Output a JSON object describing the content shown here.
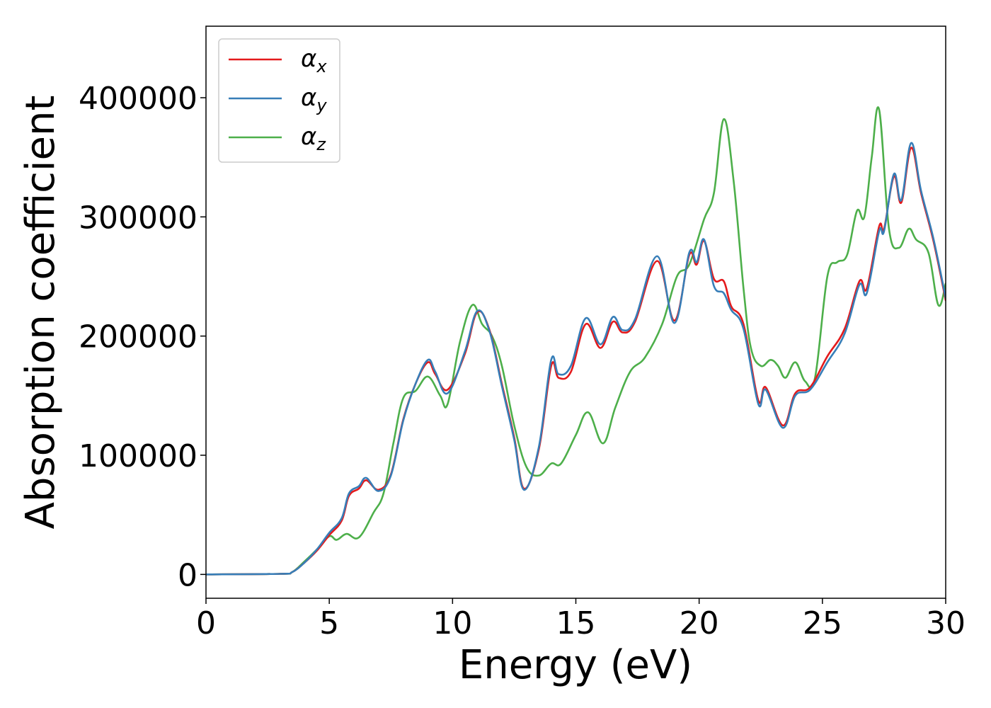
{
  "chart_data": {
    "type": "line",
    "title": "",
    "xlabel": "Energy (eV)",
    "ylabel": "Absorption coefficient",
    "xlim": [
      0,
      30
    ],
    "ylim": [
      -20000,
      460000
    ],
    "xticks": [
      0,
      5,
      10,
      15,
      20,
      25,
      30
    ],
    "yticks": [
      0,
      100000,
      200000,
      300000,
      400000
    ],
    "grid": false,
    "legend_position": "top-left",
    "series": [
      {
        "name": "αx",
        "symbol": "α",
        "subscript": "x",
        "color": "#e41a1c",
        "x": [
          0,
          3,
          3.5,
          4,
          4.5,
          5,
          5.5,
          5.8,
          6.2,
          6.5,
          7,
          7.5,
          8,
          8.5,
          9,
          9.3,
          9.8,
          10.5,
          11,
          11.5,
          12,
          12.5,
          12.9,
          13.5,
          14,
          14.3,
          14.8,
          15.4,
          16,
          16.5,
          16.9,
          17.4,
          18.3,
          19,
          19.6,
          19.9,
          20.2,
          20.6,
          21,
          21.3,
          21.8,
          22.4,
          22.7,
          23.4,
          23.9,
          24.5,
          25.2,
          25.9,
          26.5,
          26.8,
          27.3,
          27.5,
          27.9,
          28.2,
          28.6,
          29,
          29.5,
          30
        ],
        "y": [
          0,
          500,
          2000,
          10000,
          20000,
          33000,
          45000,
          66000,
          72000,
          79000,
          71000,
          84000,
          130000,
          160000,
          178000,
          168000,
          155000,
          185000,
          220000,
          205000,
          160000,
          115000,
          72000,
          105000,
          175000,
          165000,
          170000,
          210000,
          190000,
          212000,
          203000,
          212000,
          263000,
          213000,
          268000,
          260000,
          280000,
          248000,
          246000,
          225000,
          210000,
          146000,
          157000,
          125000,
          152000,
          157000,
          183000,
          206000,
          246000,
          240000,
          292000,
          290000,
          334000,
          312000,
          358000,
          320000,
          280000,
          230000
        ]
      },
      {
        "name": "αy",
        "symbol": "α",
        "subscript": "y",
        "color": "#377eb8",
        "x": [
          0,
          3,
          3.5,
          4,
          4.5,
          5,
          5.5,
          5.8,
          6.2,
          6.5,
          7,
          7.5,
          8,
          8.5,
          9,
          9.3,
          9.8,
          10.5,
          11,
          11.5,
          12,
          12.5,
          12.9,
          13.5,
          14,
          14.3,
          14.8,
          15.4,
          16,
          16.5,
          16.9,
          17.4,
          18.3,
          19,
          19.6,
          19.9,
          20.2,
          20.6,
          21,
          21.3,
          21.8,
          22.4,
          22.7,
          23.4,
          23.9,
          24.5,
          25.2,
          25.9,
          26.5,
          26.8,
          27.3,
          27.5,
          27.9,
          28.2,
          28.6,
          29,
          29.5,
          30
        ],
        "y": [
          0,
          500,
          2000,
          10000,
          21000,
          35000,
          47000,
          68000,
          74000,
          81000,
          70000,
          83000,
          129000,
          160000,
          180000,
          170000,
          152000,
          187000,
          221000,
          204000,
          158000,
          113000,
          71000,
          107000,
          180000,
          168000,
          175000,
          215000,
          193000,
          216000,
          205000,
          214000,
          267000,
          211000,
          270000,
          262000,
          281000,
          242000,
          236000,
          222000,
          206000,
          143000,
          155000,
          123000,
          150000,
          155000,
          178000,
          202000,
          243000,
          236000,
          288000,
          288000,
          336000,
          314000,
          362000,
          322000,
          282000,
          232000
        ]
      },
      {
        "name": "αz",
        "symbol": "α",
        "subscript": "z",
        "color": "#4daf4a",
        "x": [
          0,
          3,
          3.5,
          4,
          4.5,
          5,
          5.3,
          5.7,
          6.2,
          6.8,
          7.2,
          7.6,
          8,
          8.5,
          9,
          9.5,
          9.8,
          10.3,
          10.8,
          11.2,
          11.6,
          12,
          12.5,
          13,
          13.5,
          14,
          14.4,
          15,
          15.5,
          16.1,
          16.6,
          17.2,
          17.8,
          18.5,
          19.1,
          19.6,
          20.2,
          20.6,
          21,
          21.4,
          21.8,
          22.1,
          22.5,
          22.9,
          23.2,
          23.5,
          23.9,
          24.3,
          24.7,
          25.2,
          25.6,
          26,
          26.4,
          26.7,
          27,
          27.3,
          27.7,
          28.1,
          28.5,
          28.8,
          29.3,
          29.7,
          30
        ],
        "y": [
          0,
          500,
          2000,
          11000,
          21000,
          32000,
          29000,
          34000,
          31000,
          52000,
          68000,
          110000,
          148000,
          154000,
          166000,
          150000,
          143000,
          195000,
          226000,
          210000,
          200000,
          175000,
          125000,
          90000,
          83000,
          93000,
          93000,
          117000,
          136000,
          110000,
          140000,
          170000,
          182000,
          210000,
          250000,
          260000,
          298000,
          320000,
          382000,
          330000,
          240000,
          190000,
          175000,
          180000,
          175000,
          165000,
          178000,
          162000,
          165000,
          250000,
          262000,
          268000,
          305000,
          300000,
          350000,
          390000,
          290000,
          274000,
          290000,
          281000,
          270000,
          226000,
          244000
        ]
      }
    ]
  }
}
